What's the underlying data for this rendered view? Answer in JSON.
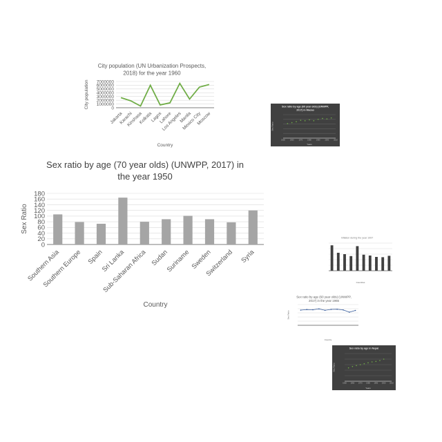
{
  "chart_data": [
    {
      "id": "city-pop",
      "type": "line",
      "title_lines": [
        "City population (UN Urbanization Prospects,",
        "2018) for the year 1960"
      ],
      "xlabel": "Country",
      "ylabel": "City population",
      "categories": [
        "Jakarta",
        "Karachi",
        "Kinshasa",
        "Kolkata",
        "Lagos",
        "Lahore",
        "Los Angeles",
        "Manila",
        "Mexico City",
        "Moscow"
      ],
      "values": [
        2700000,
        1850000,
        450000,
        6000000,
        750000,
        1300000,
        6500000,
        2300000,
        5500000,
        6200000
      ],
      "ylim": [
        0,
        7000000
      ],
      "yticks": [
        0,
        1000000,
        2000000,
        3000000,
        4000000,
        5000000,
        6000000,
        7000000
      ],
      "grid": true,
      "color": "#70AD47"
    },
    {
      "id": "sex-ratio-70",
      "type": "bar",
      "title_lines": [
        "Sex ratio by age (70 year olds) (UNWPP, 2017) in",
        "the year 1950"
      ],
      "xlabel": "Country",
      "ylabel": "Sex Ratio",
      "categories": [
        "Southern Asia",
        "Southern Europe",
        "Spain",
        "Sri Lanka",
        "Sub-Saharan Africa",
        "Sudan",
        "Suriname",
        "Sweden",
        "Switzerland",
        "Syria"
      ],
      "values": [
        106,
        79,
        73,
        165,
        80,
        89,
        101,
        89,
        78,
        120
      ],
      "ylim": [
        0,
        180
      ],
      "yticks": [
        0,
        20,
        40,
        60,
        80,
        100,
        120,
        140,
        160,
        180
      ],
      "grid": true,
      "color": "#A5A5A5"
    },
    {
      "id": "thumb-dark-scatter-1",
      "type": "scatter",
      "title_lines": [
        "Sex ratio by age (60 year olds) (UNWPP,",
        "2017) in Macao"
      ],
      "xlabel": "Years",
      "ylabel": "Sex Ratio",
      "x": [
        1955,
        1960,
        1965,
        1970,
        1975,
        1980,
        1985,
        1990,
        1995,
        2000,
        2005
      ],
      "y": [
        62,
        66,
        70,
        76,
        74,
        78,
        74,
        80,
        84,
        82,
        86
      ],
      "xlim": [
        1950,
        2010
      ],
      "ylim": [
        0,
        100
      ],
      "xticks": [
        1950,
        1960,
        1970,
        1980,
        1990,
        2000,
        2010
      ],
      "color": "#70AD47"
    },
    {
      "id": "thumb-bar-2",
      "type": "bar",
      "title_lines": [
        "Inflation during the year 1997"
      ],
      "xlabel": "Countries",
      "ylabel": "",
      "categories": [
        "",
        "",
        "",
        "",
        "",
        "",
        "",
        "",
        "",
        ""
      ],
      "values": [
        9.2,
        6.5,
        6.0,
        5.3,
        8.9,
        5.8,
        5.5,
        5.0,
        4.9,
        5.4
      ],
      "ylim": [
        0,
        10
      ],
      "color": "#404040"
    },
    {
      "id": "thumb-line-3",
      "type": "line",
      "title_lines": [
        "Sex ratio by age (60 year olds) (UNWPP,",
        "2017) in the year 1965"
      ],
      "xlabel": "Country",
      "ylabel": "Sex Ratio",
      "categories": [
        "",
        "",
        "",
        "",
        "",
        "",
        "",
        "",
        "",
        ""
      ],
      "values": [
        88,
        91,
        90,
        95,
        87,
        92,
        93,
        89,
        76,
        86
      ],
      "ylim": [
        0,
        120
      ],
      "color": "#2F5597"
    },
    {
      "id": "thumb-dark-scatter-4",
      "type": "scatter",
      "title_lines": [
        "Sex ratio by age in Nepal"
      ],
      "xlabel": "Years",
      "ylabel": "Sex Ratio",
      "x": [
        1955,
        1960,
        1965,
        1970,
        1975,
        1980,
        1985,
        1990,
        1995,
        2000
      ],
      "y": [
        58,
        64,
        68,
        72,
        76,
        80,
        84,
        86,
        90,
        96
      ],
      "xlim": [
        1950,
        2010
      ],
      "ylim": [
        0,
        120
      ],
      "xticks": [
        1950,
        1960,
        1970,
        1980,
        1990,
        2000,
        2010
      ],
      "color": "#70AD47"
    }
  ]
}
